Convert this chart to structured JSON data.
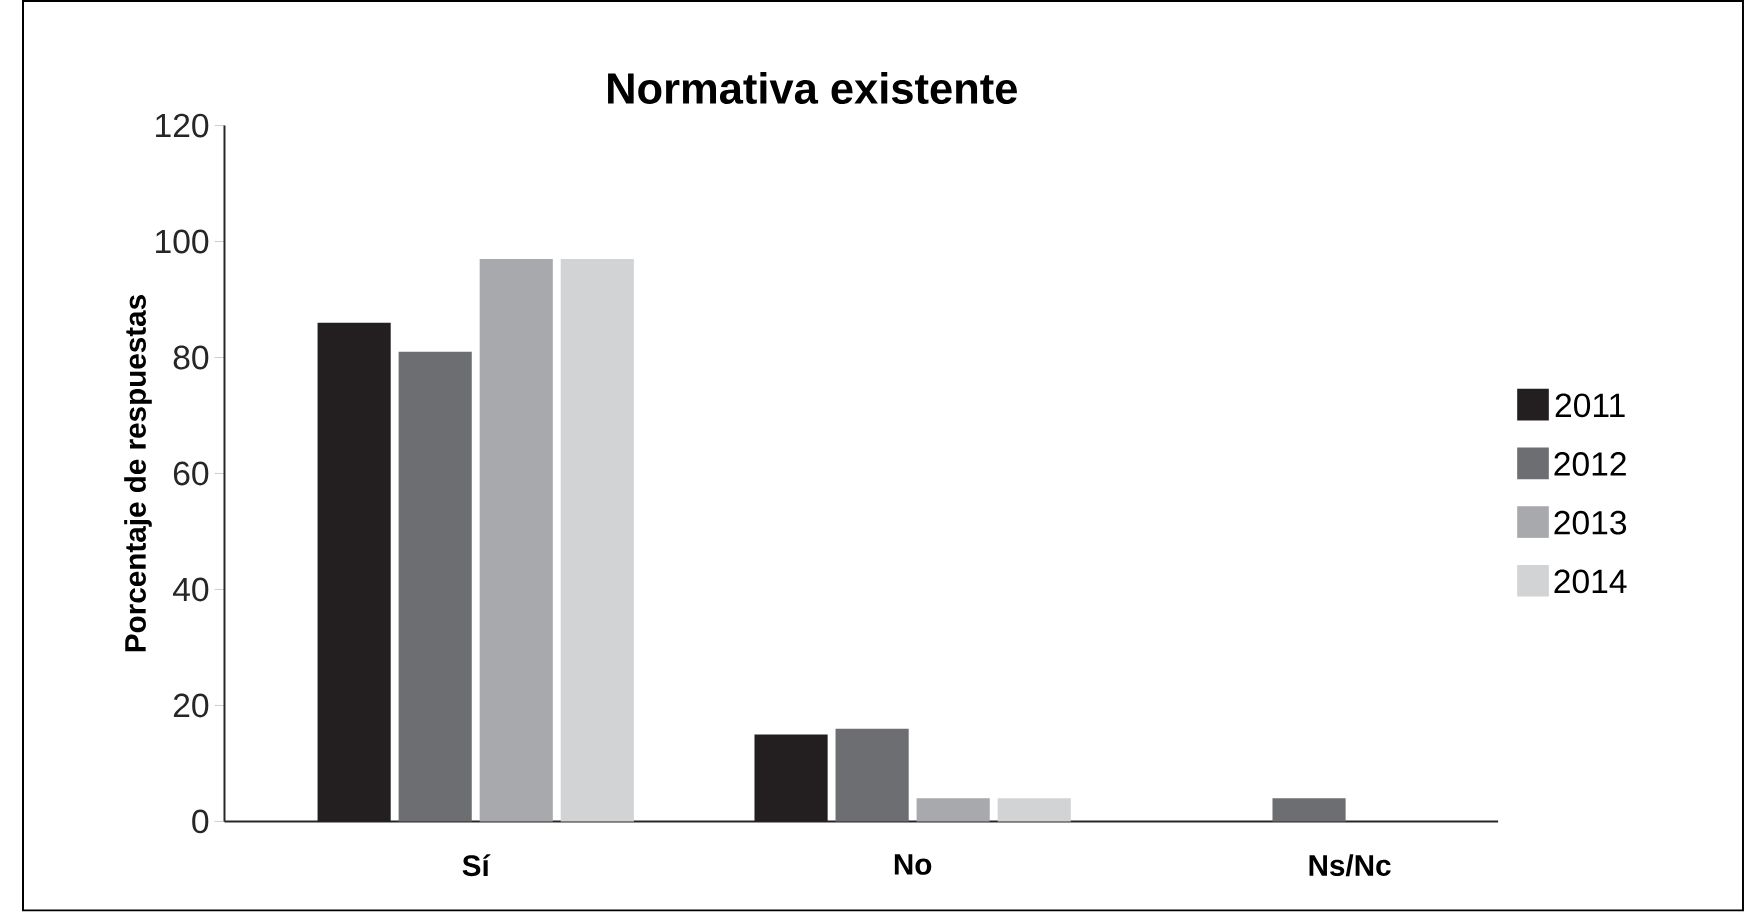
{
  "chart_data": {
    "type": "bar",
    "title": "Normativa existente",
    "ylabel": "Porcentaje de respuestas",
    "categories": [
      "Sí",
      "No",
      "Ns/Nc"
    ],
    "series": [
      {
        "name": "2011",
        "color": "#231f20",
        "values": [
          86,
          15,
          0
        ]
      },
      {
        "name": "2012",
        "color": "#6d6e71",
        "values": [
          81,
          16,
          4
        ]
      },
      {
        "name": "2013",
        "color": "#a7a9ac",
        "values": [
          97,
          4,
          0
        ]
      },
      {
        "name": "2014",
        "color": "#d1d3d4",
        "values": [
          97,
          4,
          0
        ]
      }
    ],
    "ylim": [
      0,
      120
    ],
    "yticks": [
      0,
      20,
      40,
      60,
      80,
      100,
      120
    ],
    "grid": false,
    "legend": "right"
  }
}
